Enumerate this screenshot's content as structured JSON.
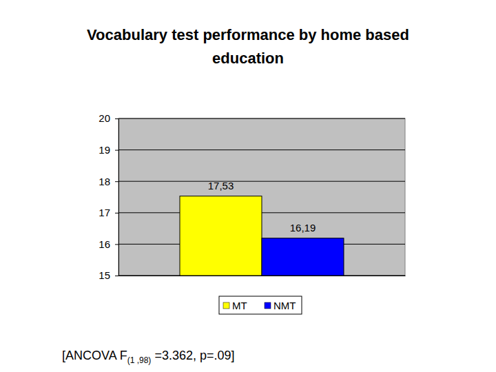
{
  "chart_data": {
    "type": "bar",
    "title": "Vocabulary test performance by home based education",
    "categories": [
      null
    ],
    "series": [
      {
        "name": "MT",
        "color": "#ffff00",
        "values": [
          17.53
        ],
        "value_labels": [
          "17,53"
        ]
      },
      {
        "name": "NMT",
        "color": "#0000ff",
        "values": [
          16.19
        ],
        "value_labels": [
          "16,19"
        ]
      }
    ],
    "ylim": [
      15,
      20
    ],
    "yticks": [
      15,
      16,
      17,
      18,
      19,
      20
    ],
    "grid": true,
    "legend": "bottom",
    "data_labels": true,
    "annotation": {
      "text": "[ANCOVA F",
      "subscript": "(1 ,98)",
      "rest": " =3.362, p=.09]"
    }
  }
}
